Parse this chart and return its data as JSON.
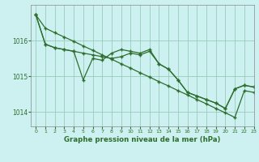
{
  "title": "Graphe pression niveau de la mer (hPa)",
  "bg_color": "#cdf0f0",
  "grid_color": "#99ccbb",
  "line_color": "#2d6e2d",
  "xlim": [
    -0.5,
    23
  ],
  "ylim": [
    1013.6,
    1017.0
  ],
  "yticks": [
    1014,
    1015,
    1016
  ],
  "xticks": [
    0,
    1,
    2,
    3,
    4,
    5,
    6,
    7,
    8,
    9,
    10,
    11,
    12,
    13,
    14,
    15,
    16,
    17,
    18,
    19,
    20,
    21,
    22,
    23
  ],
  "series_straight": [
    1016.72,
    1016.35,
    1016.22,
    1016.1,
    1015.98,
    1015.85,
    1015.73,
    1015.6,
    1015.48,
    1015.35,
    1015.23,
    1015.1,
    1014.98,
    1014.85,
    1014.73,
    1014.6,
    1014.48,
    1014.35,
    1014.23,
    1014.1,
    1013.98,
    1013.85,
    1014.6,
    1014.55
  ],
  "series_mid": [
    1016.72,
    1015.9,
    1015.8,
    1015.75,
    1015.7,
    1015.65,
    1015.6,
    1015.55,
    1015.5,
    1015.55,
    1015.65,
    1015.6,
    1015.7,
    1015.35,
    1015.2,
    1014.9,
    1014.55,
    1014.45,
    1014.35,
    1014.25,
    1014.1,
    1014.65,
    1014.75,
    1014.7
  ],
  "series_volatile": [
    1016.72,
    1015.9,
    1015.8,
    1015.75,
    1015.7,
    1014.9,
    1015.5,
    1015.45,
    1015.65,
    1015.75,
    1015.7,
    1015.65,
    1015.75,
    1015.35,
    1015.2,
    1014.9,
    1014.55,
    1014.45,
    1014.35,
    1014.25,
    1014.1,
    1014.65,
    1014.75,
    1014.7
  ]
}
